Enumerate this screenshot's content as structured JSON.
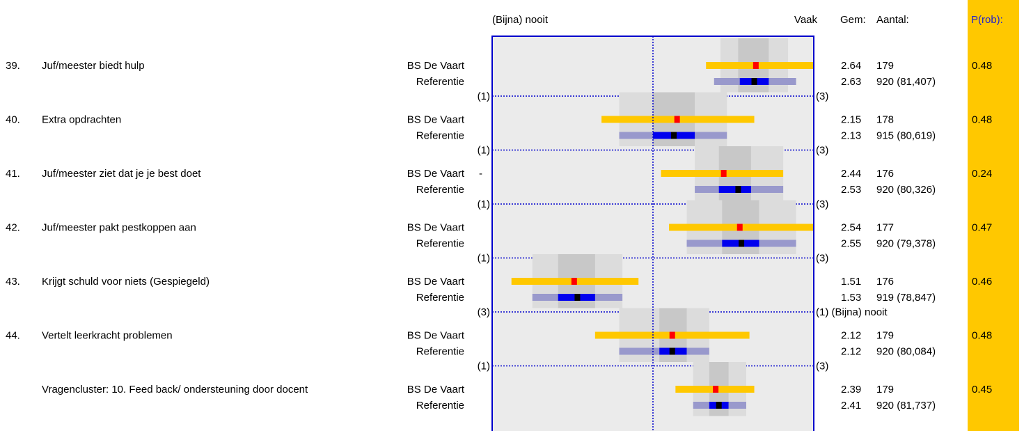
{
  "header": {
    "left_anchor": "(Bijna) nooit",
    "right_anchor": "Vaak",
    "gem": "Gem:",
    "aantal": "Aantal:",
    "prob": "P(rob):"
  },
  "colors": {
    "school_bar": "#ffc800",
    "school_mean": "#ff0000",
    "ref_bar_outer": "#9999cc",
    "ref_bar_inner": "#0000ee",
    "ref_mean": "#000000",
    "frame": "#0000cc",
    "panel_bg": "#ebebeb",
    "prob_column": "#ffc800"
  },
  "chart_data": {
    "type": "interval",
    "scale": [
      1,
      3
    ],
    "rows": [
      {
        "num": "39.",
        "question": "Juf/meester biedt hulp",
        "marker": "",
        "school_label": "BS De Vaart",
        "ref_label": "Referentie",
        "school": {
          "mean": 2.64,
          "lo": 2.33,
          "hi": 3.0,
          "n": "179"
        },
        "ref": {
          "mean": 2.63,
          "lo": 2.38,
          "hi": 2.89,
          "inner_lo": 2.54,
          "inner_hi": 2.72,
          "n": "920 (81,407)"
        },
        "band": {
          "lo": 2.42,
          "hi": 2.84,
          "core_lo": 2.53,
          "core_hi": 2.72
        },
        "prob": "0.48",
        "scale_lo": "(1)",
        "scale_hi": "(3)"
      },
      {
        "num": "40.",
        "question": "Extra opdrachten",
        "marker": "",
        "school_label": "BS De Vaart",
        "ref_label": "Referentie",
        "school": {
          "mean": 2.15,
          "lo": 1.68,
          "hi": 2.63,
          "n": "178"
        },
        "ref": {
          "mean": 2.13,
          "lo": 1.79,
          "hi": 2.46,
          "inner_lo": 2.0,
          "inner_hi": 2.26,
          "n": "915 (80,619)"
        },
        "band": {
          "lo": 1.79,
          "hi": 2.46,
          "core_lo": 2.0,
          "core_hi": 2.26
        },
        "prob": "0.48",
        "scale_lo": "(1)",
        "scale_hi": "(3)"
      },
      {
        "num": "41.",
        "question": "Juf/meester ziet dat je je best doet",
        "marker": "-",
        "school_label": "BS De Vaart",
        "ref_label": "Referentie",
        "school": {
          "mean": 2.44,
          "lo": 2.05,
          "hi": 2.81,
          "n": "176"
        },
        "ref": {
          "mean": 2.53,
          "lo": 2.26,
          "hi": 2.81,
          "inner_lo": 2.41,
          "inner_hi": 2.61,
          "n": "920 (80,326)"
        },
        "band": {
          "lo": 2.26,
          "hi": 2.81,
          "core_lo": 2.41,
          "core_hi": 2.61
        },
        "prob": "0.24",
        "scale_lo": "(1)",
        "scale_hi": "(3)"
      },
      {
        "num": "42.",
        "question": "Juf/meester pakt pestkoppen aan",
        "marker": "",
        "school_label": "BS De Vaart",
        "ref_label": "Referentie",
        "school": {
          "mean": 2.54,
          "lo": 2.1,
          "hi": 3.0,
          "n": "177"
        },
        "ref": {
          "mean": 2.55,
          "lo": 2.21,
          "hi": 2.89,
          "inner_lo": 2.43,
          "inner_hi": 2.66,
          "n": "920 (79,378)"
        },
        "band": {
          "lo": 2.21,
          "hi": 2.89,
          "core_lo": 2.43,
          "core_hi": 2.66
        },
        "prob": "0.47",
        "scale_lo": "(1)",
        "scale_hi": "(3)"
      },
      {
        "num": "43.",
        "question": "Krijgt schuld voor niets (Gespiegeld)",
        "marker": "",
        "school_label": "BS De Vaart",
        "ref_label": "Referentie",
        "school": {
          "mean": 1.51,
          "lo": 1.12,
          "hi": 1.91,
          "n": "176"
        },
        "ref": {
          "mean": 1.53,
          "lo": 1.25,
          "hi": 1.81,
          "inner_lo": 1.41,
          "inner_hi": 1.64,
          "n": "919 (78,847)"
        },
        "band": {
          "lo": 1.25,
          "hi": 1.81,
          "core_lo": 1.41,
          "core_hi": 1.64
        },
        "prob": "0.46",
        "scale_lo": "(3)",
        "scale_hi": "(1) (Bijna) nooit"
      },
      {
        "num": "44.",
        "question": "Vertelt leerkracht problemen",
        "marker": "",
        "school_label": "BS De Vaart",
        "ref_label": "Referentie",
        "school": {
          "mean": 2.12,
          "lo": 1.64,
          "hi": 2.6,
          "n": "179"
        },
        "ref": {
          "mean": 2.12,
          "lo": 1.79,
          "hi": 2.35,
          "inner_lo": 2.04,
          "inner_hi": 2.21,
          "n": "920 (80,084)"
        },
        "band": {
          "lo": 1.79,
          "hi": 2.35,
          "core_lo": 2.04,
          "core_hi": 2.21
        },
        "prob": "0.48",
        "scale_lo": "(1)",
        "scale_hi": "(3)"
      },
      {
        "num": "",
        "question": "Vragencluster: 10. Feed back/ ondersteuning door docent",
        "marker": "",
        "school_label": "BS De Vaart",
        "ref_label": "Referentie",
        "school": {
          "mean": 2.39,
          "lo": 2.14,
          "hi": 2.63,
          "n": "179"
        },
        "ref": {
          "mean": 2.41,
          "lo": 2.25,
          "hi": 2.58,
          "inner_lo": 2.35,
          "inner_hi": 2.47,
          "n": "920 (81,737)"
        },
        "band": {
          "lo": 2.25,
          "hi": 2.58,
          "core_lo": 2.35,
          "core_hi": 2.47
        },
        "prob": "0.45",
        "scale_lo": "",
        "scale_hi": ""
      }
    ]
  }
}
